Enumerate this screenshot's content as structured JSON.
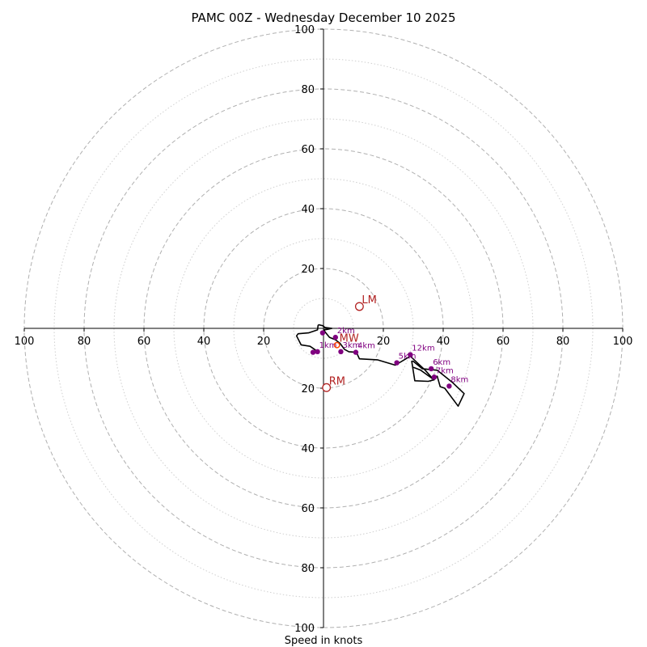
{
  "chart_data": {
    "type": "line",
    "subtype": "hodograph",
    "title": "PAMC 00Z - Wednesday December 10 2025",
    "xlabel": "Speed in knots",
    "xlim": [
      -100,
      100
    ],
    "ylim": [
      -100,
      100
    ],
    "x_ticks": [
      {
        "value": -100,
        "label": "100"
      },
      {
        "value": -80,
        "label": "80"
      },
      {
        "value": -60,
        "label": "60"
      },
      {
        "value": -40,
        "label": "40"
      },
      {
        "value": -20,
        "label": "20"
      },
      {
        "value": 20,
        "label": "20"
      },
      {
        "value": 40,
        "label": "40"
      },
      {
        "value": 60,
        "label": "60"
      },
      {
        "value": 80,
        "label": "80"
      },
      {
        "value": 100,
        "label": "100"
      }
    ],
    "y_ticks": [
      {
        "value": 100,
        "label": "100"
      },
      {
        "value": 80,
        "label": "80"
      },
      {
        "value": 60,
        "label": "60"
      },
      {
        "value": 40,
        "label": "40"
      },
      {
        "value": 20,
        "label": "20"
      },
      {
        "value": -20,
        "label": "20"
      },
      {
        "value": -40,
        "label": "40"
      },
      {
        "value": -60,
        "label": "60"
      },
      {
        "value": -80,
        "label": "80"
      },
      {
        "value": -100,
        "label": "100"
      }
    ],
    "rings_major": [
      20,
      40,
      60,
      80,
      100
    ],
    "rings_minor": [
      10,
      30,
      50,
      70,
      90
    ],
    "colors": {
      "hodograph": "#000000",
      "height_points": "#800080",
      "markers": "#b22222",
      "mean_wind": "#ff4500"
    },
    "hodograph_uv": [
      [
        -3.5,
        -8
      ],
      [
        -2,
        -7.8
      ],
      [
        -3,
        -7
      ],
      [
        -4.5,
        -6
      ],
      [
        -7.5,
        -5.5
      ],
      [
        -8,
        -4.5
      ],
      [
        -9,
        -2.5
      ],
      [
        -8.5,
        -1.8
      ],
      [
        -5,
        -1.5
      ],
      [
        -2,
        -0.5
      ],
      [
        -1.8,
        1
      ],
      [
        -1.5,
        1.2
      ],
      [
        -0.3,
        0.9
      ],
      [
        0.5,
        0.3
      ],
      [
        2.8,
        0
      ],
      [
        1.5,
        -0.3
      ],
      [
        0.2,
        -0.5
      ],
      [
        0.5,
        -1.2
      ],
      [
        2,
        -3
      ],
      [
        4,
        -3.8
      ],
      [
        5.5,
        -5
      ],
      [
        7,
        -7
      ],
      [
        8.5,
        -7.8
      ],
      [
        11,
        -8
      ],
      [
        12,
        -10.2
      ],
      [
        18,
        -10.5
      ],
      [
        24,
        -12.3
      ],
      [
        29,
        -9.3
      ],
      [
        34,
        -14
      ],
      [
        36.5,
        -16.8
      ],
      [
        38,
        -16
      ],
      [
        39,
        -19.5
      ],
      [
        40.5,
        -20
      ],
      [
        45,
        -26
      ],
      [
        47,
        -21.8
      ],
      [
        43,
        -18
      ],
      [
        38,
        -14
      ],
      [
        33,
        -13.5
      ],
      [
        30,
        -11
      ],
      [
        29.5,
        -11
      ],
      [
        30.5,
        -17.5
      ],
      [
        35,
        -17.7
      ],
      [
        37,
        -17.2
      ],
      [
        35,
        -15.8
      ],
      [
        32.5,
        -14
      ],
      [
        30,
        -13
      ]
    ],
    "height_points": [
      {
        "label": "",
        "u": -3.5,
        "v": -8
      },
      {
        "label": "1km",
        "u": -2,
        "v": -7.8
      },
      {
        "label": "",
        "u": -0.3,
        "v": -1.5
      },
      {
        "label": "2km",
        "u": 4,
        "v": -3
      },
      {
        "label": "3km",
        "u": 5.8,
        "v": -7.8
      },
      {
        "label": "4km",
        "u": 10.8,
        "v": -8
      },
      {
        "label": "5km",
        "u": 24.5,
        "v": -11.5
      },
      {
        "label": "12km",
        "u": 29,
        "v": -8.8
      },
      {
        "label": "6km",
        "u": 36,
        "v": -13.5
      },
      {
        "label": "7km",
        "u": 37,
        "v": -16.3
      },
      {
        "label": "8km",
        "u": 42,
        "v": -19.3
      }
    ],
    "markers": [
      {
        "name": "LM",
        "u": 12,
        "v": 7.3
      },
      {
        "name": "RM",
        "u": 1,
        "v": -19.8
      },
      {
        "name": "MW",
        "u": 4.5,
        "v": -5.6
      }
    ]
  }
}
